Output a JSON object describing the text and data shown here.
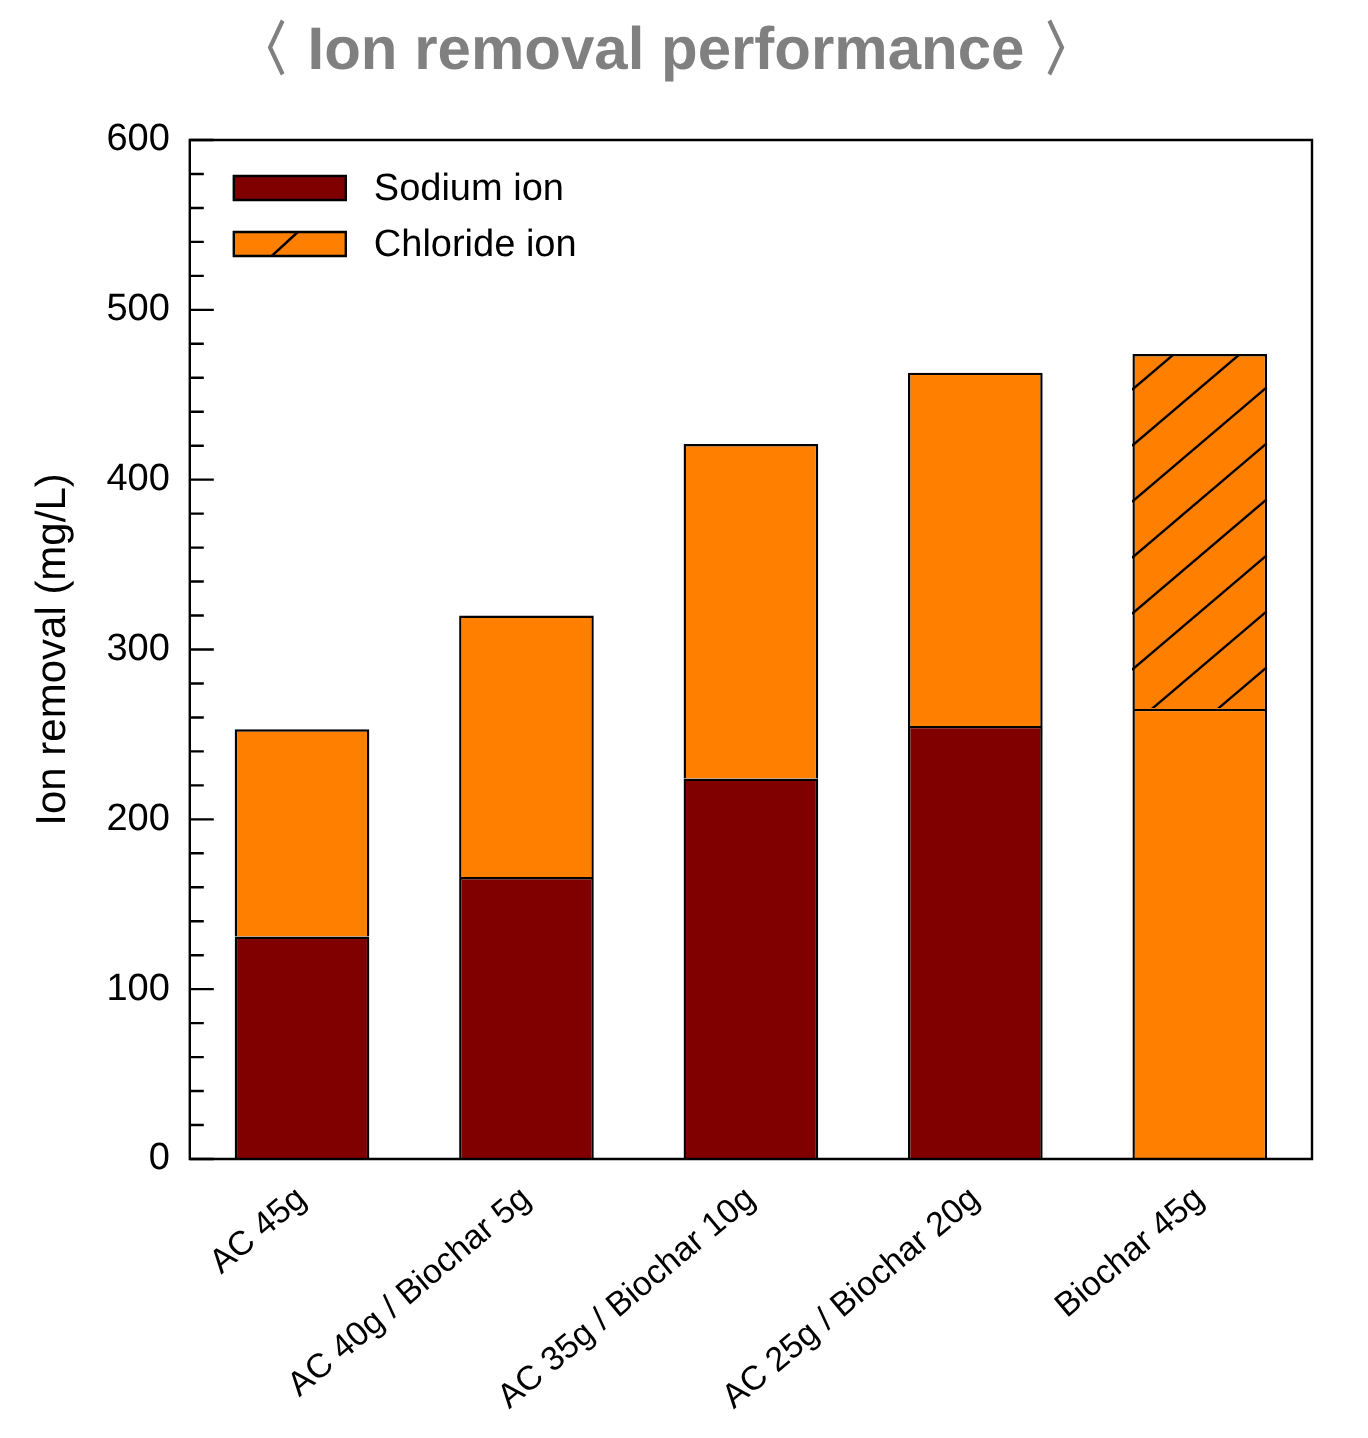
{
  "chart_data": {
    "type": "bar",
    "title": "〈 Ion removal performance 〉",
    "ylabel": "Ion removal (mg/L)",
    "categories": [
      "AC 45g",
      "AC 40g / Biochar 5g",
      "AC 35g / Biochar 10g",
      "AC 25g / Biochar 20g",
      "Biochar 45g"
    ],
    "series": [
      {
        "name": "Sodium ion",
        "color": "#800000",
        "colors": [
          "#800000",
          "#800000",
          "#800000",
          "#800000",
          "#ff8000"
        ],
        "values": [
          131,
          166,
          224,
          255,
          265
        ]
      },
      {
        "name": "Chloride ion",
        "color": "#ff8000",
        "colors": [
          "#ff8000",
          "#ff8000",
          "#ff8000",
          "#ff8000",
          "#ff8000"
        ],
        "values": [
          122,
          154,
          197,
          208,
          209
        ]
      }
    ],
    "stacked": true,
    "ylim": [
      0,
      600
    ],
    "yticks": [
      0,
      100,
      200,
      300,
      400,
      500,
      600
    ],
    "grid": false,
    "legend": "top left"
  }
}
